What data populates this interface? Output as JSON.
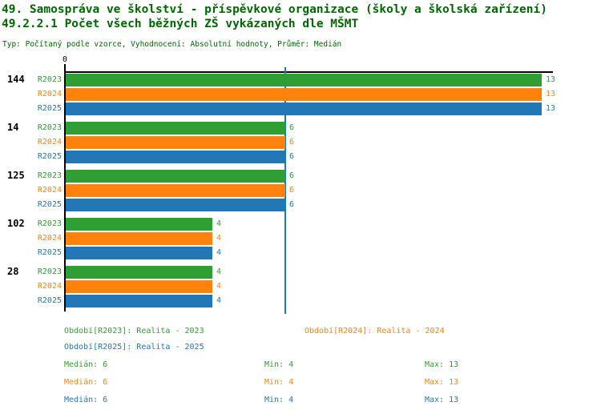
{
  "header": {
    "title_line1": "49. Samospráva ve školství - příspěvkové organizace (školy a školská zařízení)",
    "title_line2": "49.2.2.1 Počet všech běžných ZŠ vykázaných dle MŠMT",
    "meta_line": "Typ: Počítaný podle vzorce, Vyhodnocení: Absolutní hodnoty, Průměr: Medián",
    "title_color": "#006600"
  },
  "chart_data": {
    "type": "bar",
    "orientation": "horizontal",
    "axis_zero_label": "0",
    "xlim": [
      0,
      13.3
    ],
    "grid": false,
    "categories": [
      "144",
      "14",
      "125",
      "102",
      "28"
    ],
    "series_labels": [
      "R2023",
      "R2024",
      "R2025"
    ],
    "series_colors": [
      "#2f9e33",
      "#ff820d",
      "#2277b4"
    ],
    "groups": [
      {
        "category": "144",
        "values": [
          13,
          13,
          13
        ]
      },
      {
        "category": "14",
        "values": [
          6,
          6,
          6
        ]
      },
      {
        "category": "125",
        "values": [
          6,
          6,
          6
        ]
      },
      {
        "category": "102",
        "values": [
          4,
          4,
          4
        ]
      },
      {
        "category": "28",
        "values": [
          4,
          4,
          4
        ]
      }
    ],
    "median_line_value": 6,
    "median_line_color": "#2277b4",
    "axis_color": "#000000"
  },
  "legend": {
    "items": [
      {
        "label": "Období[R2023]: Realita - 2023",
        "color": "#2f9e33"
      },
      {
        "label": "Období[R2024]: Realita - 2024",
        "color": "#ff820d"
      },
      {
        "label": "Období[R2025]: Realita - 2025",
        "color": "#2277b4"
      }
    ]
  },
  "stats": {
    "rows": [
      {
        "median": "Medián: 6",
        "min": "Min: 4",
        "max": "Max: 13",
        "color": "#2f9e33"
      },
      {
        "median": "Medián: 6",
        "min": "Min: 4",
        "max": "Max: 13",
        "color": "#ff820d"
      },
      {
        "median": "Medián: 6",
        "min": "Min: 4",
        "max": "Max: 13",
        "color": "#2277b4"
      }
    ]
  }
}
